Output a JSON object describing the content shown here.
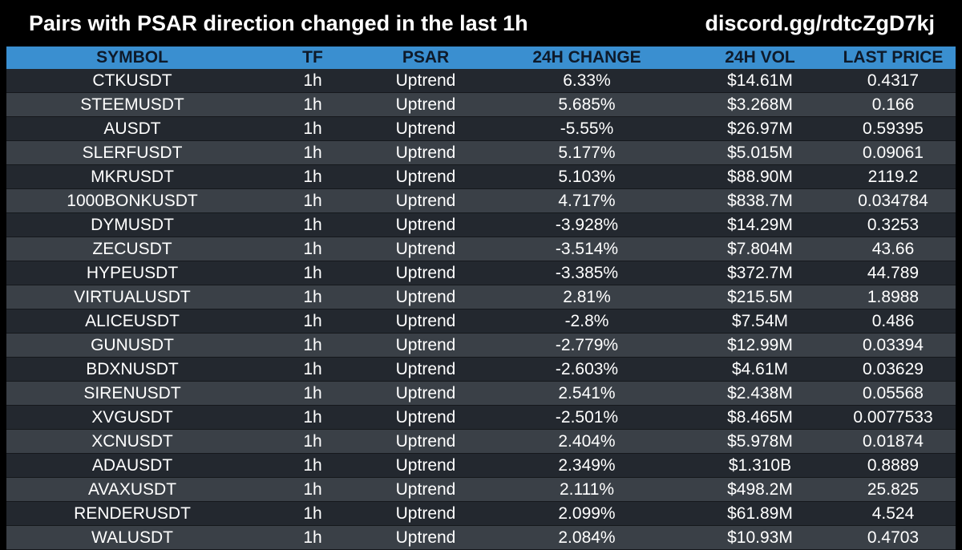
{
  "header": {
    "title": "Pairs with PSAR direction changed in the last 1h",
    "discord": "discord.gg/rdtcZgD7kj"
  },
  "colors": {
    "header_bg": "#3a8fd0",
    "header_text": "#0e1a2a",
    "row_dark": "#23282f",
    "row_light": "#3a4047",
    "page_bg": "#000000"
  },
  "table": {
    "columns": [
      "SYMBOL",
      "TF",
      "PSAR",
      "24H CHANGE",
      "24H VOL",
      "LAST PRICE"
    ],
    "rows": [
      [
        "CTKUSDT",
        "1h",
        "Uptrend",
        "6.33%",
        "$14.61M",
        "0.4317"
      ],
      [
        "STEEMUSDT",
        "1h",
        "Uptrend",
        "5.685%",
        "$3.268M",
        "0.166"
      ],
      [
        "AUSDT",
        "1h",
        "Uptrend",
        "-5.55%",
        "$26.97M",
        "0.59395"
      ],
      [
        "SLERFUSDT",
        "1h",
        "Uptrend",
        "5.177%",
        "$5.015M",
        "0.09061"
      ],
      [
        "MKRUSDT",
        "1h",
        "Uptrend",
        "5.103%",
        "$88.90M",
        "2119.2"
      ],
      [
        "1000BONKUSDT",
        "1h",
        "Uptrend",
        "4.717%",
        "$838.7M",
        "0.034784"
      ],
      [
        "DYMUSDT",
        "1h",
        "Uptrend",
        "-3.928%",
        "$14.29M",
        "0.3253"
      ],
      [
        "ZECUSDT",
        "1h",
        "Uptrend",
        "-3.514%",
        "$7.804M",
        "43.66"
      ],
      [
        "HYPEUSDT",
        "1h",
        "Uptrend",
        "-3.385%",
        "$372.7M",
        "44.789"
      ],
      [
        "VIRTUALUSDT",
        "1h",
        "Uptrend",
        "2.81%",
        "$215.5M",
        "1.8988"
      ],
      [
        "ALICEUSDT",
        "1h",
        "Uptrend",
        "-2.8%",
        "$7.54M",
        "0.486"
      ],
      [
        "GUNUSDT",
        "1h",
        "Uptrend",
        "-2.779%",
        "$12.99M",
        "0.03394"
      ],
      [
        "BDXNUSDT",
        "1h",
        "Uptrend",
        "-2.603%",
        "$4.61M",
        "0.03629"
      ],
      [
        "SIRENUSDT",
        "1h",
        "Uptrend",
        "2.541%",
        "$2.438M",
        "0.05568"
      ],
      [
        "XVGUSDT",
        "1h",
        "Uptrend",
        "-2.501%",
        "$8.465M",
        "0.0077533"
      ],
      [
        "XCNUSDT",
        "1h",
        "Uptrend",
        "2.404%",
        "$5.978M",
        "0.01874"
      ],
      [
        "ADAUSDT",
        "1h",
        "Uptrend",
        "2.349%",
        "$1.310B",
        "0.8889"
      ],
      [
        "AVAXUSDT",
        "1h",
        "Uptrend",
        "2.111%",
        "$498.2M",
        "25.825"
      ],
      [
        "RENDERUSDT",
        "1h",
        "Uptrend",
        "2.099%",
        "$61.89M",
        "4.524"
      ],
      [
        "WALUSDT",
        "1h",
        "Uptrend",
        "2.084%",
        "$10.93M",
        "0.4703"
      ]
    ]
  }
}
